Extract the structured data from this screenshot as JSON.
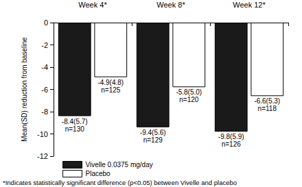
{
  "chart_data": {
    "type": "bar",
    "categories": [
      "Week 4*",
      "Week 8*",
      "Week 12*"
    ],
    "series": [
      {
        "name": "Vivelle 0.0375 mg/day",
        "color": "#1a1a1a",
        "values": [
          -8.4,
          -9.4,
          -9.8
        ],
        "value_labels": [
          "-8.4(5.7)\nn=130",
          "-9.4(5.6)\nn=129",
          "-9.8(5.9)\nn=126"
        ]
      },
      {
        "name": "Placebo",
        "color": "#ffffff",
        "values": [
          -4.9,
          -5.8,
          -6.6
        ],
        "value_labels": [
          "-4.9(4.8)\nn=125",
          "-5.8(5.0)\nn=120",
          "-6.6(5.3)\nn=118"
        ]
      }
    ],
    "y_label": "Mean(SD) reduction from baseline",
    "annotations": [
      "*Indicates statistically significant difference (p<0.05) between Vivelle and placebo"
    ],
    "ylim": [
      -12,
      0
    ],
    "yticks": [
      -12,
      -10,
      -8,
      -6,
      -4,
      -2,
      0
    ],
    "grid": false,
    "data_labels": true,
    "legend": "bottom-left"
  }
}
